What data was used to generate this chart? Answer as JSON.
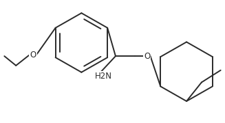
{
  "background": "#ffffff",
  "line_color": "#2a2a2a",
  "line_width": 1.4,
  "text_color": "#2a2a2a",
  "h2n_label": "H2N",
  "o_label1": "O",
  "o_label2": "O",
  "font_size": 8.5
}
